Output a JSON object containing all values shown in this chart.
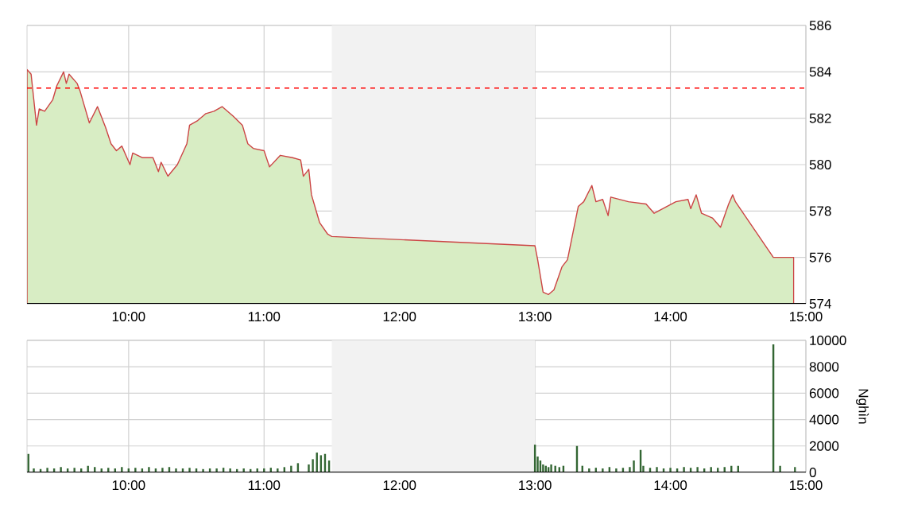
{
  "chart_data": [
    {
      "type": "area",
      "color": "#cc4444",
      "x": [
        9.25,
        9.28,
        9.32,
        9.34,
        9.38,
        9.44,
        9.47,
        9.52,
        9.54,
        9.56,
        9.62,
        9.64,
        9.67,
        9.71,
        9.77,
        9.83,
        9.87,
        9.91,
        9.95,
        10.01,
        10.03,
        10.1,
        10.18,
        10.22,
        10.24,
        10.29,
        10.36,
        10.43,
        10.45,
        10.51,
        10.57,
        10.63,
        10.69,
        10.77,
        10.84,
        10.88,
        10.92,
        11.0,
        11.04,
        11.12,
        11.21,
        11.27,
        11.29,
        11.33,
        11.35,
        11.39,
        11.41,
        11.47,
        11.5,
        13.0,
        13.02,
        13.06,
        13.1,
        13.14,
        13.2,
        13.24,
        13.32,
        13.36,
        13.42,
        13.45,
        13.5,
        13.54,
        13.56,
        13.69,
        13.82,
        13.88,
        14.04,
        14.13,
        14.15,
        14.19,
        14.23,
        14.31,
        14.37,
        14.43,
        14.46,
        14.48,
        14.76,
        14.91
      ],
      "values": [
        584.1,
        583.9,
        581.7,
        582.4,
        582.3,
        582.8,
        583.4,
        584.0,
        583.5,
        583.9,
        583.5,
        583.2,
        582.6,
        581.8,
        582.5,
        581.6,
        580.9,
        580.6,
        580.8,
        580.0,
        580.5,
        580.3,
        580.3,
        579.7,
        580.1,
        579.5,
        580.0,
        580.9,
        581.7,
        581.9,
        582.2,
        582.3,
        582.5,
        582.1,
        581.7,
        580.9,
        580.7,
        580.6,
        579.9,
        580.4,
        580.3,
        580.2,
        579.5,
        579.8,
        578.7,
        577.9,
        577.5,
        577.0,
        576.9,
        576.5,
        575.9,
        574.5,
        574.4,
        574.6,
        575.6,
        575.9,
        578.2,
        578.4,
        579.1,
        578.4,
        578.5,
        577.8,
        578.6,
        578.4,
        578.3,
        577.9,
        578.4,
        578.5,
        578.1,
        578.7,
        577.9,
        577.7,
        577.3,
        578.3,
        578.7,
        578.4,
        576.0,
        576.0
      ],
      "xlim": [
        9.25,
        15
      ],
      "ylim": [
        574,
        586
      ],
      "xticks": [
        {
          "value": 10,
          "label": "10:00"
        },
        {
          "value": 11,
          "label": "11:00"
        },
        {
          "value": 12,
          "label": "12:00"
        },
        {
          "value": 13,
          "label": "13:00"
        },
        {
          "value": 14,
          "label": "14:00"
        },
        {
          "value": 15,
          "label": "15:00"
        }
      ],
      "yticks": [
        574,
        576,
        578,
        580,
        582,
        584,
        586
      ],
      "grid": true,
      "ref_lines": [
        {
          "axis": "y",
          "value": 583.3,
          "color": "#ff0000",
          "line_style": "dashed"
        }
      ],
      "bands": [
        {
          "axis": "x",
          "from": 11.5,
          "to": 13,
          "color": "#f2f2f2"
        }
      ]
    },
    {
      "type": "bar",
      "color": "#336633",
      "ylabel": "Nghìn",
      "x": [
        9.26,
        9.3,
        9.35,
        9.4,
        9.45,
        9.5,
        9.55,
        9.6,
        9.65,
        9.7,
        9.75,
        9.8,
        9.85,
        9.9,
        9.95,
        10.0,
        10.05,
        10.1,
        10.15,
        10.2,
        10.25,
        10.3,
        10.35,
        10.4,
        10.45,
        10.5,
        10.55,
        10.6,
        10.65,
        10.7,
        10.75,
        10.8,
        10.85,
        10.9,
        10.95,
        11.0,
        11.05,
        11.1,
        11.15,
        11.2,
        11.25,
        11.33,
        11.36,
        11.39,
        11.42,
        11.45,
        11.48,
        13.0,
        13.02,
        13.04,
        13.06,
        13.08,
        13.1,
        13.12,
        13.15,
        13.18,
        13.21,
        13.31,
        13.35,
        13.4,
        13.45,
        13.5,
        13.55,
        13.6,
        13.65,
        13.7,
        13.73,
        13.78,
        13.8,
        13.85,
        13.9,
        13.95,
        14.0,
        14.05,
        14.1,
        14.15,
        14.2,
        14.25,
        14.3,
        14.35,
        14.4,
        14.45,
        14.5,
        14.76,
        14.81,
        14.92
      ],
      "values": [
        1400,
        300,
        250,
        350,
        300,
        400,
        300,
        350,
        300,
        500,
        400,
        300,
        350,
        300,
        400,
        300,
        350,
        300,
        400,
        300,
        350,
        400,
        300,
        300,
        350,
        300,
        250,
        300,
        300,
        350,
        300,
        250,
        300,
        250,
        300,
        300,
        350,
        300,
        400,
        500,
        700,
        600,
        1000,
        1500,
        1300,
        1400,
        900,
        2100,
        1200,
        900,
        600,
        500,
        400,
        600,
        500,
        400,
        500,
        2000,
        500,
        300,
        350,
        300,
        400,
        300,
        350,
        400,
        900,
        1700,
        500,
        350,
        400,
        300,
        350,
        300,
        400,
        350,
        400,
        300,
        400,
        350,
        400,
        500,
        500,
        9700,
        500,
        400
      ],
      "xlim": [
        9.25,
        15
      ],
      "ylim": [
        0,
        10000
      ],
      "xticks": [
        {
          "value": 10,
          "label": "10:00"
        },
        {
          "value": 11,
          "label": "11:00"
        },
        {
          "value": 12,
          "label": "12:00"
        },
        {
          "value": 13,
          "label": "13:00"
        },
        {
          "value": 14,
          "label": "14:00"
        },
        {
          "value": 15,
          "label": "15:00"
        }
      ],
      "yticks": [
        0,
        2000,
        4000,
        6000,
        8000,
        10000
      ],
      "grid": true,
      "bands": [
        {
          "axis": "x",
          "from": 11.5,
          "to": 13,
          "color": "#f2f2f2"
        }
      ]
    }
  ]
}
